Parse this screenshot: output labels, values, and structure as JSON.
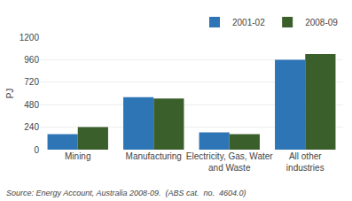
{
  "chart_data": {
    "type": "bar",
    "categories": [
      "Mining",
      "Manufacturing",
      "Electricity, Gas, Water\nand Waste",
      "All other\nindustries"
    ],
    "series": [
      {
        "name": "2001-02",
        "color": "#2E75B6",
        "values": [
          165,
          560,
          185,
          960
        ]
      },
      {
        "name": "2008-09",
        "color": "#3A5F2A",
        "values": [
          240,
          545,
          165,
          1020
        ]
      }
    ],
    "ylabel": "PJ",
    "ylim": [
      0,
      1200
    ],
    "yticks": [
      0,
      240,
      480,
      720,
      960,
      1200
    ],
    "grid": true,
    "legend": "upper right",
    "annotations": [
      "Source: Energy Account, Australia 2008-09.  (ABS cat.  no.  4604.0)"
    ]
  }
}
